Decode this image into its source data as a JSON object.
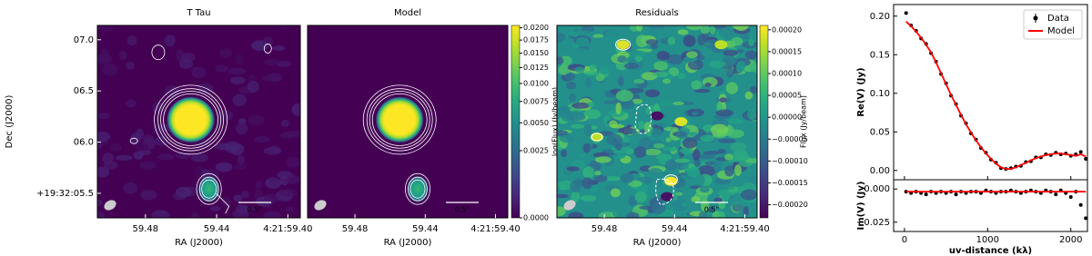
{
  "chart_data": [
    {
      "type": "image",
      "title": "T Tau",
      "xlabel": "RA (J2000)",
      "ylabel": "Dec (J2000)",
      "xlim": [
        59.507,
        59.393
      ],
      "xticks": [
        59.48,
        59.44,
        {
          "value": 59.4,
          "label": "4:21:59.40"
        }
      ],
      "ylim": [
        5.26,
        7.14
      ],
      "yticks": [
        {
          "value": 7,
          "label": "07.0"
        },
        {
          "value": 6.5,
          "label": "06.5"
        },
        {
          "value": 6,
          "label": "06.0"
        },
        {
          "value": 5.5,
          "label": "+19:32:05.5"
        }
      ],
      "scalebar_label": "0.5\"",
      "cmap": "viridis"
    },
    {
      "type": "image",
      "title": "Model",
      "xlabel": "RA (J2000)",
      "xlim": [
        59.507,
        59.393
      ],
      "xticks": [
        59.48,
        59.44,
        {
          "value": 59.4,
          "label": "4:21:59.40"
        }
      ],
      "scalebar_label": "0.5\"",
      "cmap": "viridis",
      "colorbar": {
        "label": "log(Flux) (Jy/beam)",
        "scale": "sqrt",
        "clim": [
          0,
          0.0205
        ],
        "ticks": [
          {
            "value": 0.02,
            "label": "0.0200"
          },
          {
            "value": 0.0175,
            "label": "0.0175"
          },
          {
            "value": 0.015,
            "label": "0.0150"
          },
          {
            "value": 0.0125,
            "label": "0.0125"
          },
          {
            "value": 0.01,
            "label": "0.0100"
          },
          {
            "value": 0.0075,
            "label": "0.0075"
          },
          {
            "value": 0.005,
            "label": "0.0050"
          },
          {
            "value": 0.0025,
            "label": "0.0025"
          },
          {
            "value": 0,
            "label": "0.0000"
          }
        ]
      }
    },
    {
      "type": "image",
      "title": "Residuals",
      "xlabel": "RA (J2000)",
      "xlim": [
        59.507,
        59.393
      ],
      "xticks": [
        59.48,
        59.44,
        {
          "value": 59.4,
          "label": "4:21:59.40"
        }
      ],
      "scalebar_label": "0.5\"",
      "cmap": "viridis",
      "colorbar": {
        "label": "Flux (Jy/beam)",
        "scale": "linear",
        "clim": [
          -0.00023,
          0.00021
        ],
        "ticks": [
          {
            "value": 0.0002,
            "label": "0.00020"
          },
          {
            "value": 0.00015,
            "label": "0.00015"
          },
          {
            "value": 0.0001,
            "label": "0.00010"
          },
          {
            "value": 5e-05,
            "label": "0.00005"
          },
          {
            "value": 0,
            "label": "0.00000"
          },
          {
            "value": -5e-05,
            "label": "−0.00005"
          },
          {
            "value": -0.0001,
            "label": "−0.00010"
          },
          {
            "value": -0.00015,
            "label": "−0.00015"
          },
          {
            "value": -0.0002,
            "label": "−0.00020"
          }
        ]
      }
    },
    {
      "type": "scatter",
      "ylabel": "Re(V) (Jy)",
      "xlim": [
        -130,
        2200
      ],
      "xticks": [
        0,
        1000,
        2000
      ],
      "ylim": [
        -0.012,
        0.215
      ],
      "yticks": [
        {
          "value": 0,
          "label": "0.00"
        },
        0.05,
        {
          "value": 0.1,
          "label": "0.10"
        },
        0.15,
        {
          "value": 0.2,
          "label": "0.20"
        }
      ],
      "legend": "upper right",
      "x": [
        20,
        80,
        140,
        200,
        260,
        320,
        380,
        440,
        500,
        560,
        620,
        680,
        740,
        800,
        860,
        920,
        980,
        1040,
        1100,
        1160,
        1220,
        1280,
        1340,
        1400,
        1460,
        1520,
        1580,
        1640,
        1700,
        1760,
        1820,
        1880,
        1940,
        2000,
        2060,
        2120,
        2180
      ],
      "series": [
        {
          "name": "Data",
          "color": "#000000",
          "style": "points",
          "values": [
            0.204,
            0.188,
            0.181,
            0.171,
            0.164,
            0.152,
            0.141,
            0.125,
            0.113,
            0.097,
            0.086,
            0.071,
            0.061,
            0.048,
            0.04,
            0.029,
            0.023,
            0.014,
            0.01,
            0.003,
            0.002,
            0.003,
            0.005,
            0.006,
            0.011,
            0.012,
            0.017,
            0.017,
            0.021,
            0.02,
            0.023,
            0.021,
            0.022,
            0.019,
            0.021,
            0.024,
            0.015
          ]
        },
        {
          "name": "Model",
          "color": "#ff0000",
          "style": "line",
          "values": [
            0.193,
            0.187,
            0.18,
            0.172,
            0.163,
            0.153,
            0.14,
            0.126,
            0.112,
            0.098,
            0.085,
            0.072,
            0.06,
            0.049,
            0.039,
            0.03,
            0.022,
            0.015,
            0.009,
            0.004,
            0.002,
            0.002,
            0.004,
            0.007,
            0.01,
            0.013,
            0.016,
            0.018,
            0.02,
            0.021,
            0.022,
            0.022,
            0.021,
            0.02,
            0.019,
            0.021,
            0.018
          ]
        }
      ]
    },
    {
      "type": "scatter",
      "xlabel": "uv-distance (kλ)",
      "ylabel": "Im(V) (Jy)",
      "xlim": [
        -130,
        2200
      ],
      "xticks": [
        0,
        1000,
        2000
      ],
      "ylim": [
        -0.032,
        0.007
      ],
      "yticks": [
        {
          "value": 0,
          "label": "0.000"
        },
        {
          "value": -0.025,
          "label": "−0.025"
        }
      ],
      "x": [
        20,
        80,
        140,
        200,
        260,
        320,
        380,
        440,
        500,
        560,
        620,
        680,
        740,
        800,
        860,
        920,
        980,
        1040,
        1100,
        1160,
        1220,
        1280,
        1340,
        1400,
        1460,
        1520,
        1580,
        1640,
        1700,
        1760,
        1820,
        1880,
        1940,
        2000,
        2060,
        2120,
        2180
      ],
      "series": [
        {
          "color": "#000000",
          "style": "points",
          "values": [
            -0.002,
            -0.003,
            -0.002,
            -0.003,
            -0.004,
            -0.002,
            -0.003,
            -0.002,
            -0.003,
            -0.002,
            -0.004,
            -0.002,
            -0.003,
            -0.002,
            -0.002,
            -0.003,
            -0.001,
            -0.002,
            -0.003,
            -0.002,
            -0.002,
            -0.001,
            -0.002,
            -0.003,
            -0.002,
            -0.001,
            -0.002,
            -0.003,
            -0.001,
            -0.002,
            -0.004,
            -0.001,
            -0.003,
            -0.006,
            -0.002,
            -0.012,
            -0.022
          ]
        },
        {
          "color": "#ff0000",
          "style": "line",
          "values": [
            -0.002,
            -0.002,
            -0.002,
            -0.002,
            -0.002,
            -0.002,
            -0.002,
            -0.002,
            -0.002,
            -0.002,
            -0.002,
            -0.002,
            -0.002,
            -0.002,
            -0.002,
            -0.002,
            -0.002,
            -0.002,
            -0.002,
            -0.002,
            -0.002,
            -0.002,
            -0.002,
            -0.002,
            -0.002,
            -0.002,
            -0.002,
            -0.002,
            -0.002,
            -0.002,
            -0.002,
            -0.002,
            -0.002,
            -0.002,
            -0.002,
            -0.002,
            -0.002
          ]
        }
      ]
    }
  ]
}
